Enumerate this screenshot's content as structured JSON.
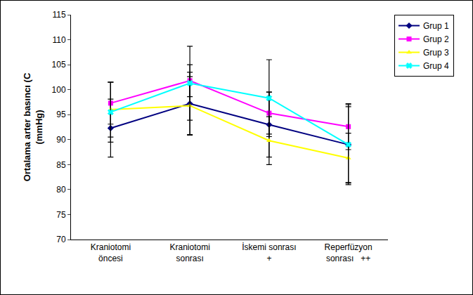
{
  "chart_data": {
    "type": "line",
    "ylabel": "Ortalama arter basıncı (C\n(mmHg)",
    "categories": [
      "Kraniotomi\nöncesi",
      "Kraniotomi\nsonrası",
      "İskemi sonrası\n+",
      "Reperfüzyon\nsonrası   ++"
    ],
    "series": [
      {
        "name": "Grup 1",
        "color": "#000080",
        "marker": "diamond",
        "values": [
          92.3,
          97.2,
          93.0,
          89.0
        ],
        "errors": [
          5.8,
          6.3,
          6.5,
          7.6
        ]
      },
      {
        "name": "Grup 2",
        "color": "#FF00FF",
        "marker": "square",
        "values": [
          97.3,
          101.8,
          95.3,
          92.6
        ],
        "errors": [
          4.2,
          3.2,
          4.2,
          4.6
        ]
      },
      {
        "name": "Grup 3",
        "color": "#FFFF00",
        "marker": "triangle",
        "values": [
          96.0,
          96.8,
          89.8,
          86.3
        ],
        "errors": [
          5.5,
          5.8,
          4.8,
          5.0
        ]
      },
      {
        "name": "Grup 4",
        "color": "#00FFFF",
        "marker": "x",
        "values": [
          95.5,
          101.3,
          98.3,
          89.0
        ],
        "errors": [
          6.0,
          7.4,
          7.7,
          8.0
        ]
      }
    ],
    "ylim": [
      70,
      115
    ],
    "yticks": [
      70,
      75,
      80,
      85,
      90,
      95,
      100,
      105,
      110,
      115
    ],
    "grid": false,
    "legend": "right"
  }
}
